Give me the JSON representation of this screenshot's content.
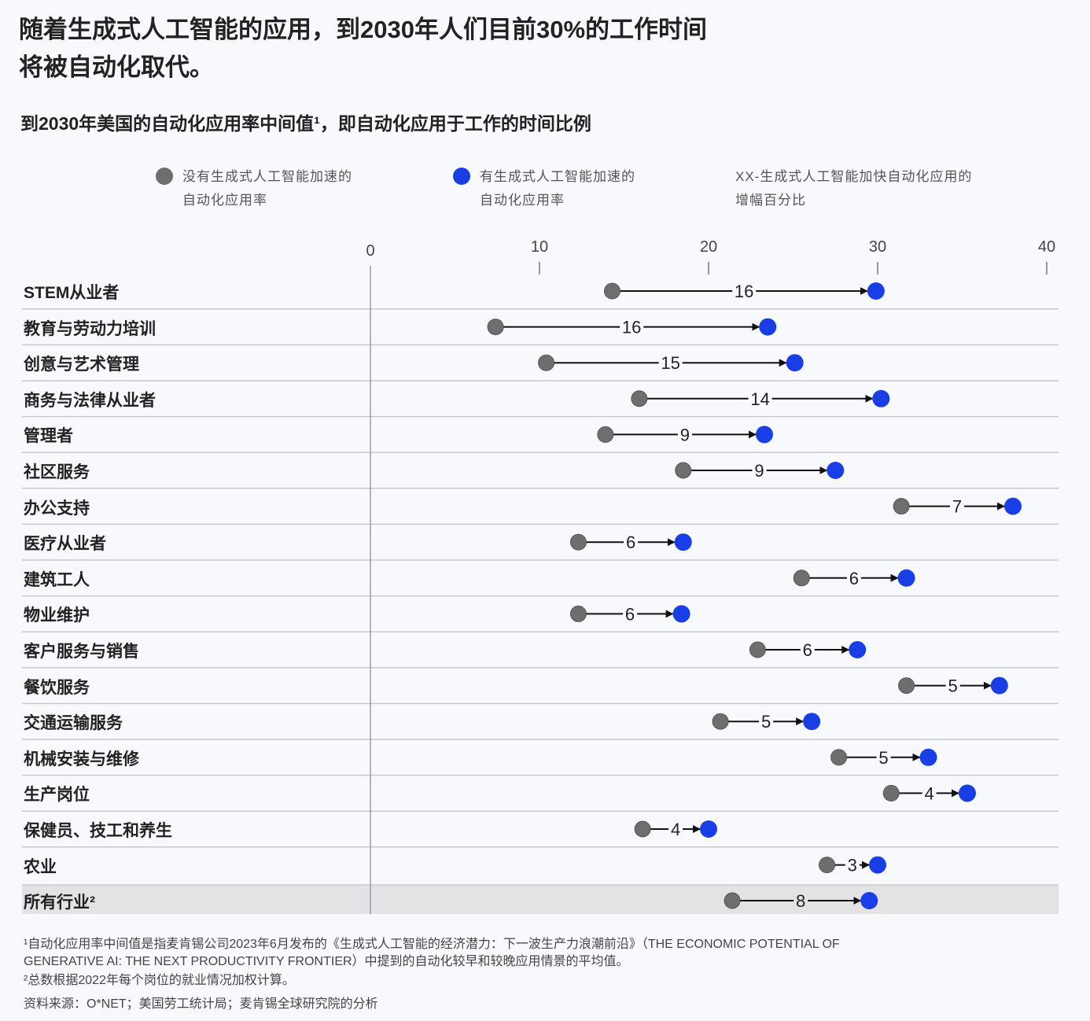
{
  "title_line1": "随着生成式人工智能的应用，到2030年人们目前30%的工作时间",
  "title_line2": "将被自动化取代。",
  "chart_data": {
    "type": "dumbbell",
    "title": "到2030年美国的自动化应用率中间值¹，即自动化应用于工作的时间比例",
    "xlim": [
      0,
      40
    ],
    "xticks": [
      0,
      10,
      20,
      30,
      40
    ],
    "legend": [
      {
        "label_line1": "没有生成式人工智能加速的",
        "label_line2": "自动化应用率",
        "color": "#6e6e6e"
      },
      {
        "label_line1": "有生成式人工智能加速的",
        "label_line2": "自动化应用率",
        "color": "#1a3ee6"
      },
      {
        "label_line1": "XX-生成式人工智能加快自动化应用的",
        "label_line2": "增幅百分比"
      }
    ],
    "legend_placement": "top",
    "categories": [
      "STEM从业者",
      "教育与劳动力培训",
      "创意与艺术管理",
      "商务与法律从业者",
      "管理者",
      "社区服务",
      "办公支持",
      "医疗从业者",
      "建筑工人",
      "物业维护",
      "客户服务与销售",
      "餐饮服务",
      "交通运输服务",
      "机械安装与维修",
      "生产岗位",
      "保健员、技工和养生",
      "农业",
      "所有行业²"
    ],
    "without_genai": [
      14.3,
      7.4,
      10.4,
      15.9,
      13.9,
      18.5,
      31.4,
      12.3,
      25.5,
      12.3,
      22.9,
      31.7,
      20.7,
      27.7,
      30.8,
      16.1,
      27.0,
      21.4
    ],
    "with_genai": [
      29.9,
      23.5,
      25.1,
      30.2,
      23.3,
      27.5,
      38.0,
      18.5,
      31.7,
      18.4,
      28.8,
      37.2,
      26.1,
      33.0,
      35.3,
      20.0,
      30.0,
      29.5
    ],
    "increase_labels": [
      "16",
      "16",
      "15",
      "14",
      "9",
      "9",
      "7",
      "6",
      "6",
      "6",
      "6",
      "5",
      "5",
      "5",
      "4",
      "4",
      "3",
      "8"
    ]
  },
  "footnotes": [
    "¹自动化应用率中间值是指麦肯锡公司2023年6月发布的《生成式人工智能的经济潜力：下一波生产力浪潮前沿》（THE ECONOMIC POTENTIAL OF",
    "  GENERATIVE  AI: THE NEXT PRODUCTIVITY FRONTIER）中提到的自动化较早和较晚应用情景的平均值。",
    "²总数根据2022年每个岗位的就业情况加权计算。",
    " 资料来源：O*NET；美国劳工统计局；麦肯锡全球研究院的分析"
  ]
}
